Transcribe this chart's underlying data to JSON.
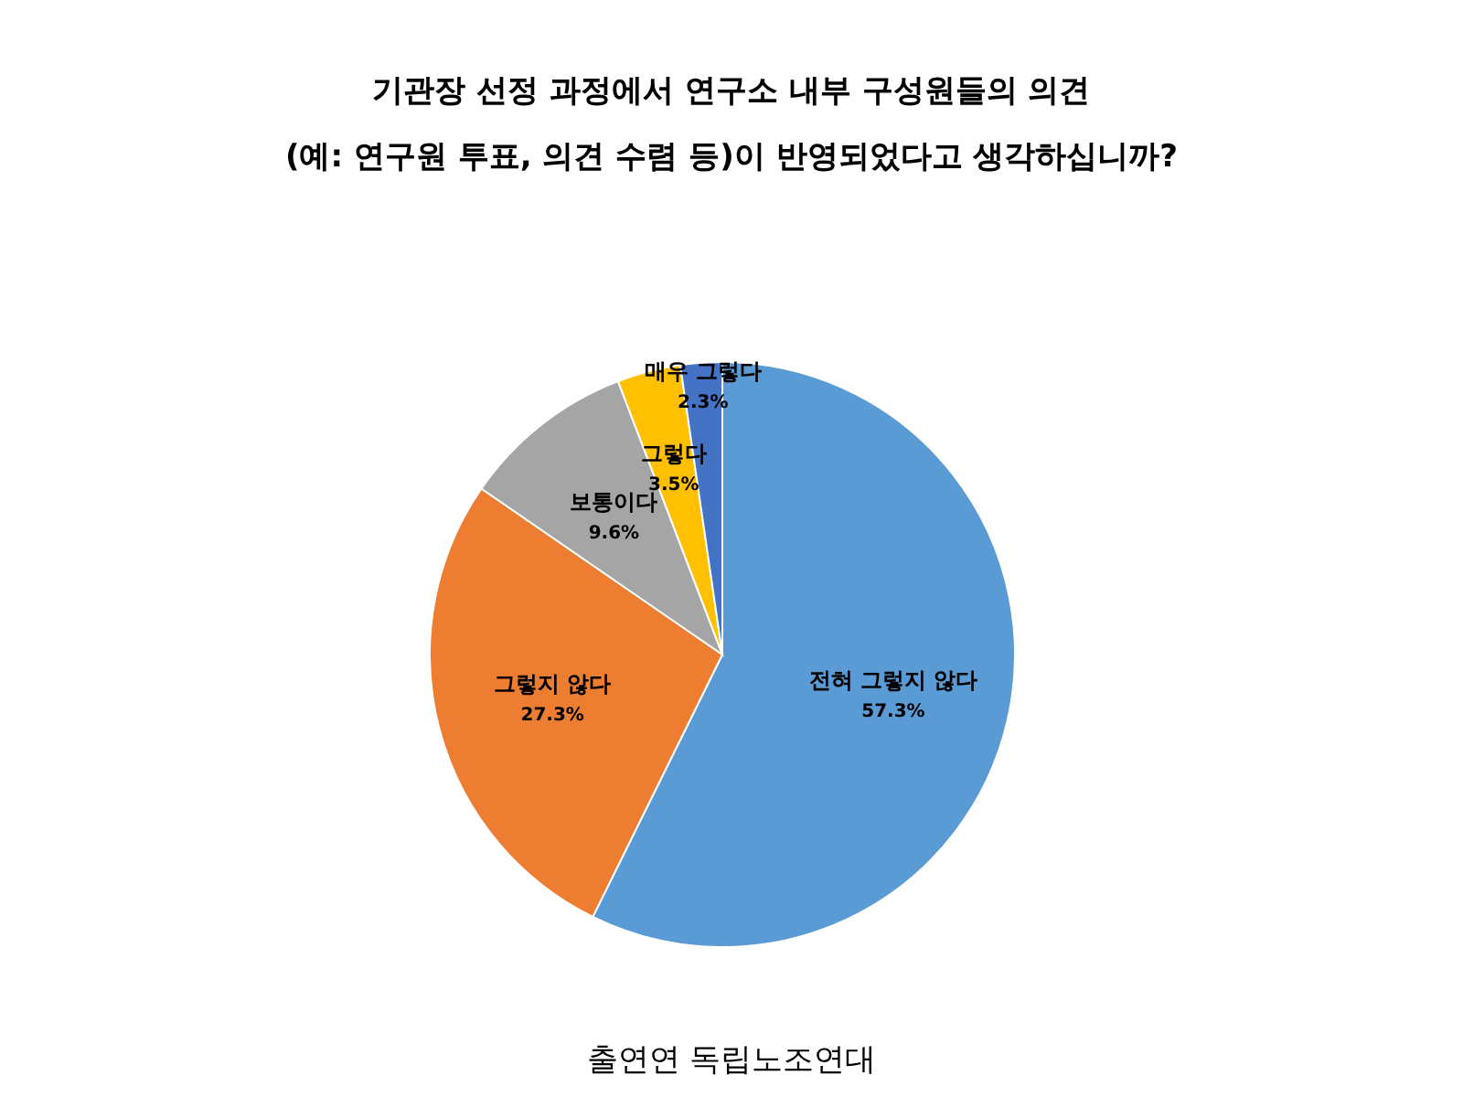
{
  "chart_data": {
    "type": "pie",
    "title": "기관장 선정 과정에서 연구소 내부 구성원들의 의견\n(예: 연구원 투표, 의견 수렴 등)이 반영되었다고 생각하십니까?",
    "categories": [
      "전혀 그렇지 않다",
      "그렇지 않다",
      "보통이다",
      "그렇다",
      "매우 그렇다"
    ],
    "values": [
      57.3,
      27.3,
      9.6,
      3.5,
      2.3
    ],
    "colors": [
      "#5b9bd5",
      "#ed7d31",
      "#a5a5a5",
      "#ffc000",
      "#4472c4"
    ],
    "value_labels": [
      "57.3%",
      "27.3%",
      "9.6%",
      "3.5%",
      "2.3%"
    ],
    "annotations": [
      "출연연 독립노조연대"
    ]
  }
}
